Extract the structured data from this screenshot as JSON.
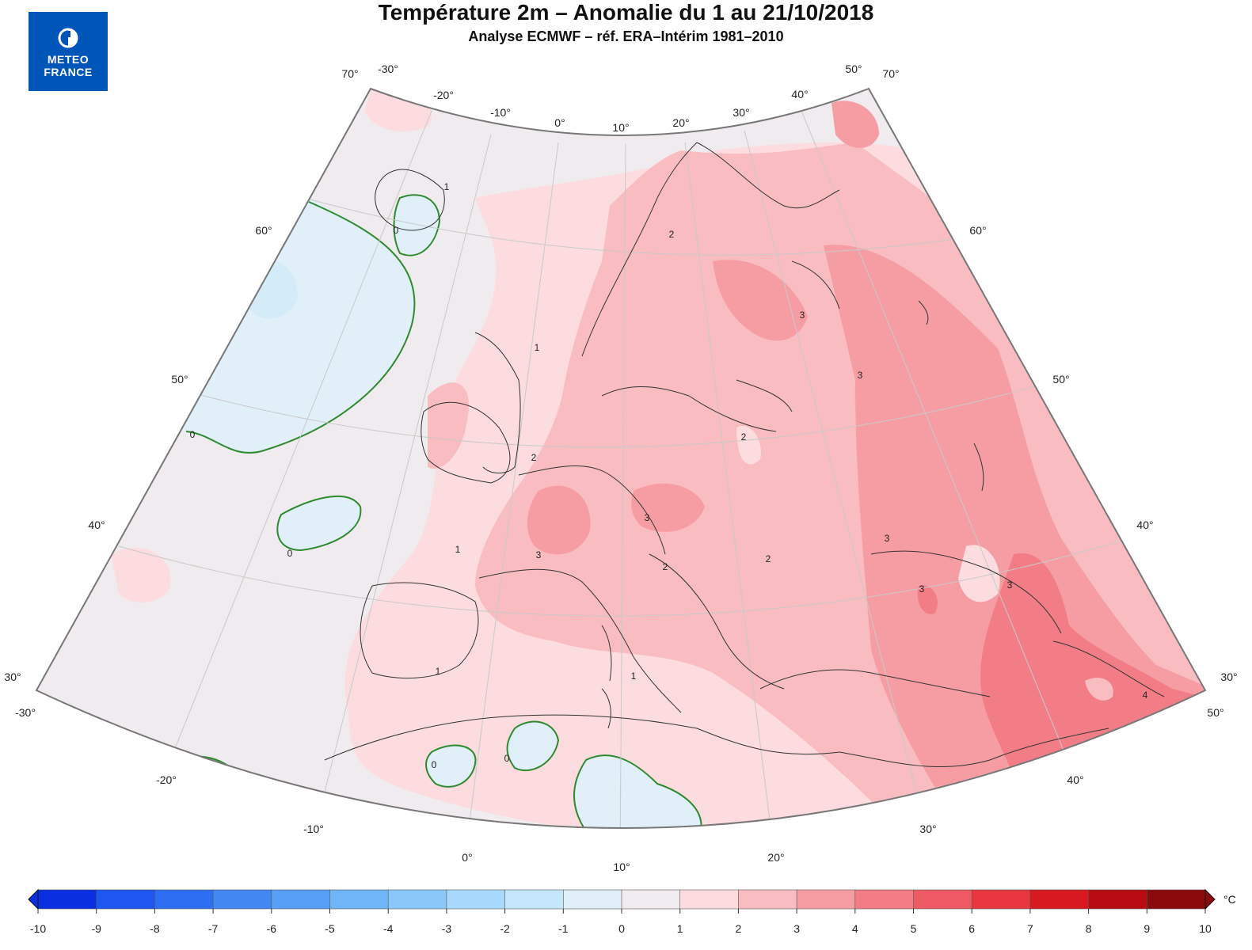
{
  "header": {
    "title": "Température 2m – Anomalie du 1 au 21/10/2018",
    "subtitle": "Analyse ECMWF – réf. ERA–Intérim 1981–2010"
  },
  "logo": {
    "line1": "METEO",
    "line2": "FRANCE",
    "icon": "meteo-france-logo-icon",
    "color": "#0055b8"
  },
  "map": {
    "type": "temperature-anomaly",
    "region": "Europe",
    "unit": "°C",
    "lon_range": [
      -30,
      50
    ],
    "lat_range": [
      30,
      70
    ],
    "top_lon_labels": [
      "-30°",
      "-20°",
      "-10°",
      "0°",
      "10°",
      "20°",
      "30°",
      "40°",
      "50°"
    ],
    "bottom_lon_labels": [
      "-30°",
      "-20°",
      "-10°",
      "0°",
      "10°",
      "20°",
      "30°",
      "40°",
      "50°"
    ],
    "left_lat_labels": [
      "70°",
      "60°",
      "50°",
      "40°",
      "30°"
    ],
    "right_lat_labels": [
      "70°",
      "60°",
      "50°",
      "40°",
      "30°"
    ],
    "contour_labels": [
      "0",
      "0",
      "0",
      "0",
      "0",
      "1",
      "1",
      "1",
      "1",
      "1",
      "2",
      "2",
      "2",
      "2",
      "2",
      "3",
      "3",
      "3",
      "3",
      "3",
      "3",
      "3",
      "4"
    ]
  },
  "legend": {
    "unit": "°C",
    "ticks": [
      "-10",
      "-9",
      "-8",
      "-7",
      "-6",
      "-5",
      "-4",
      "-3",
      "-2",
      "-1",
      "0",
      "1",
      "2",
      "3",
      "4",
      "5",
      "6",
      "7",
      "8",
      "9",
      "10"
    ],
    "colors": [
      "#0a2fe0",
      "#1d56f0",
      "#2e6ff2",
      "#4288f3",
      "#57a0f5",
      "#6fb6f8",
      "#8ac8fa",
      "#a8d9fc",
      "#c6e7fb",
      "#e0eff8",
      "#f0ebee",
      "#fcdcdf",
      "#f9bcc1",
      "#f69da4",
      "#f27d86",
      "#ee5a63",
      "#e8373f",
      "#d61a20",
      "#b80c12",
      "#8a0a0c"
    ]
  }
}
